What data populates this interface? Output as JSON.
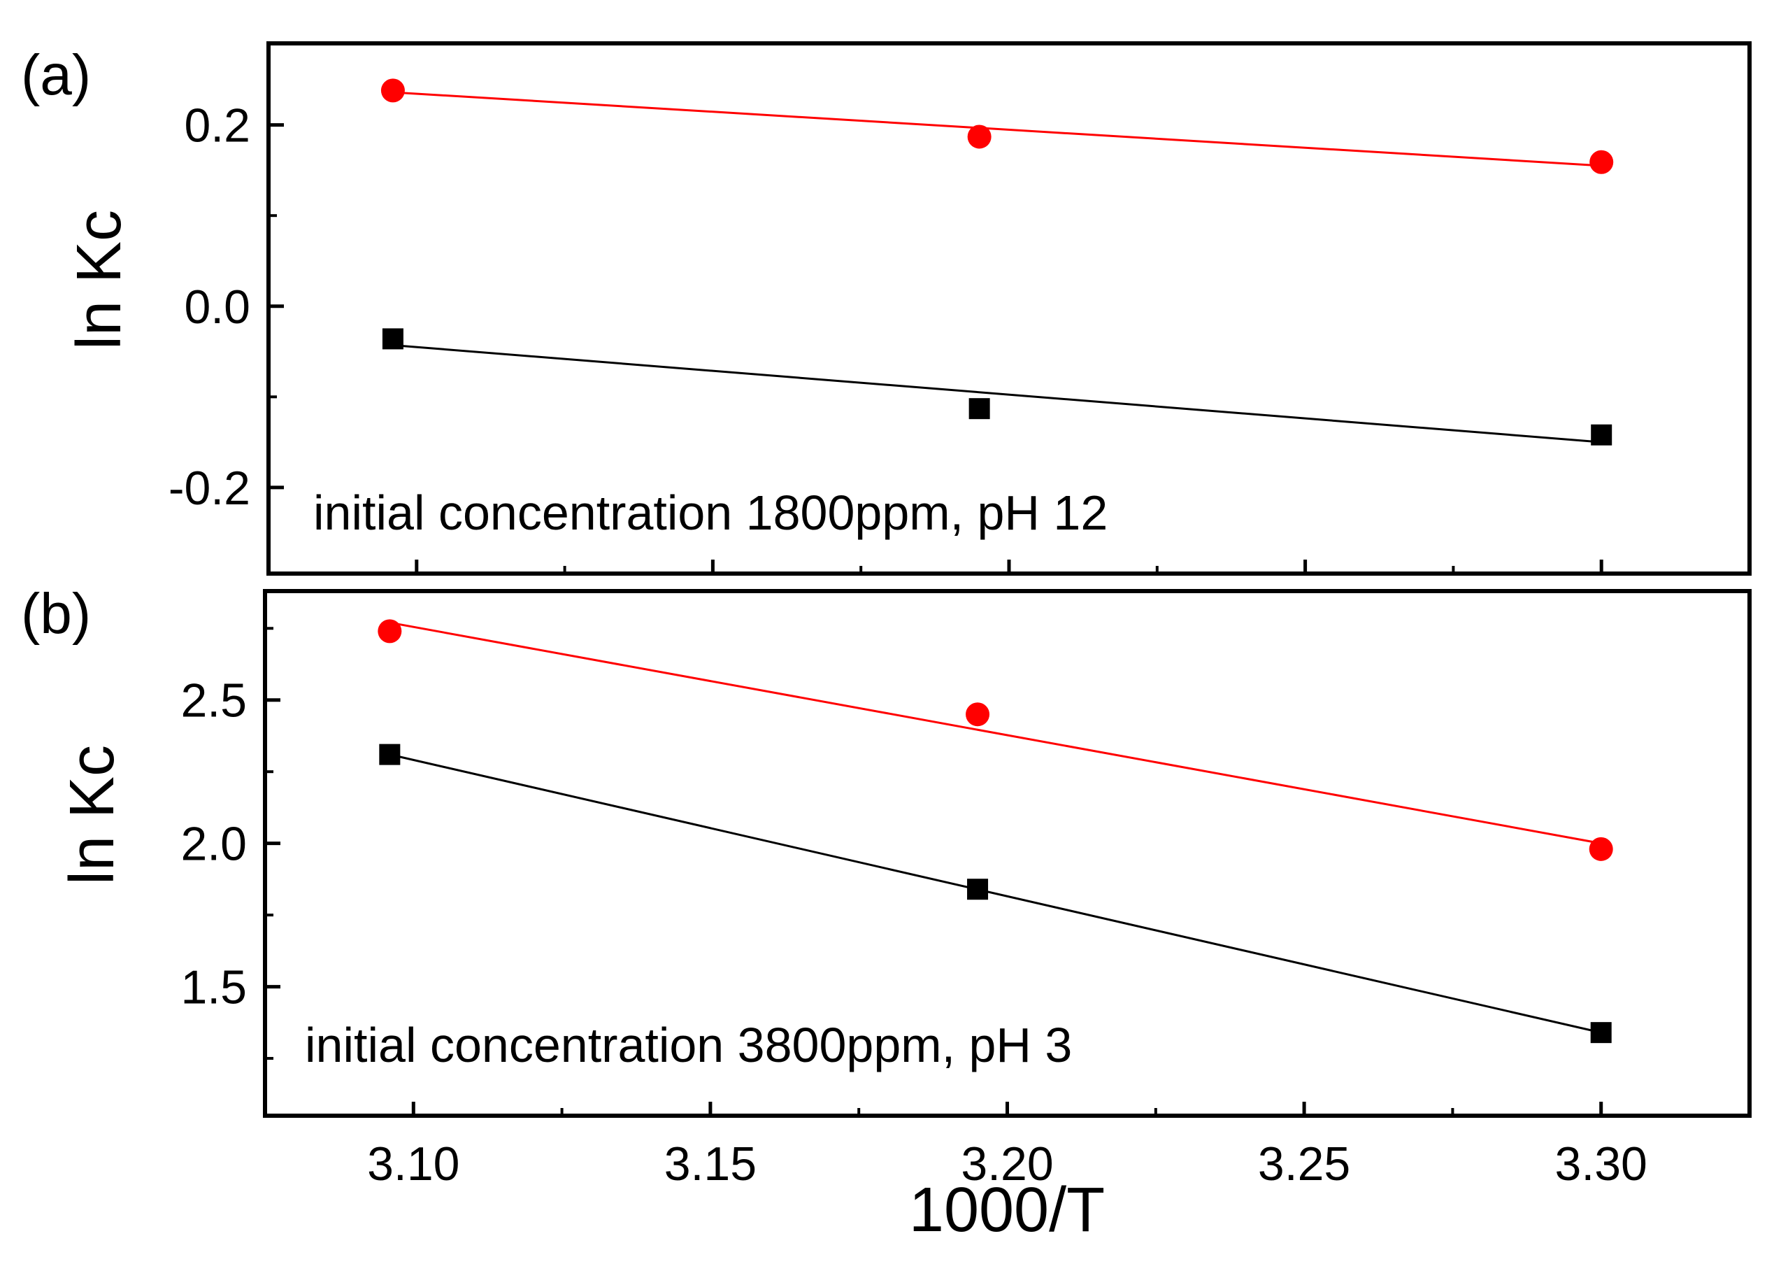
{
  "chart_data": [
    {
      "type": "scatter",
      "panel_label": "(a)",
      "annotation": "initial concentration 1800ppm, pH 12",
      "xlabel": "1000/T",
      "ylabel": "ln Kc",
      "xlim": [
        3.075,
        3.325
      ],
      "ylim": [
        -0.295,
        0.29
      ],
      "x_ticks": [
        3.1,
        3.15,
        3.2,
        3.25,
        3.3
      ],
      "y_ticks": [
        -0.2,
        0.0,
        0.2
      ],
      "y_tick_labels": [
        "-0.2",
        "0.0",
        "0.2"
      ],
      "x_minor_ticks": [
        3.125,
        3.175,
        3.225,
        3.275
      ],
      "y_minor_ticks": [
        -0.1,
        0.1
      ],
      "series": [
        {
          "name": "red",
          "color": "#ff0000",
          "marker": "circle",
          "x": [
            3.096,
            3.195,
            3.3
          ],
          "y": [
            0.238,
            0.187,
            0.159
          ],
          "fit": {
            "x": [
              3.096,
              3.3
            ],
            "y": [
              0.236,
              0.155
            ]
          }
        },
        {
          "name": "black",
          "color": "#000000",
          "marker": "square",
          "x": [
            3.096,
            3.195,
            3.3
          ],
          "y": [
            -0.036,
            -0.113,
            -0.142
          ],
          "fit": {
            "x": [
              3.096,
              3.3
            ],
            "y": [
              -0.043,
              -0.15
            ]
          }
        }
      ]
    },
    {
      "type": "scatter",
      "panel_label": "(b)",
      "annotation": "initial concentration 3800ppm, pH 3",
      "xlabel": "1000/T",
      "ylabel": "ln Kc",
      "xlim": [
        3.075,
        3.325
      ],
      "ylim": [
        1.05,
        2.88
      ],
      "x_ticks": [
        3.1,
        3.15,
        3.2,
        3.25,
        3.3
      ],
      "x_tick_labels": [
        "3.10",
        "3.15",
        "3.20",
        "3.25",
        "3.30"
      ],
      "y_ticks": [
        1.5,
        2.0,
        2.5
      ],
      "y_tick_labels": [
        "1.5",
        "2.0",
        "2.5"
      ],
      "x_minor_ticks": [
        3.125,
        3.175,
        3.225,
        3.275
      ],
      "y_minor_ticks": [
        1.25,
        1.75,
        2.25,
        2.75
      ],
      "series": [
        {
          "name": "red",
          "color": "#ff0000",
          "marker": "circle",
          "x": [
            3.096,
            3.195,
            3.3
          ],
          "y": [
            2.74,
            2.45,
            1.98
          ],
          "fit": {
            "x": [
              3.096,
              3.3
            ],
            "y": [
              2.77,
              2.0
            ]
          }
        },
        {
          "name": "black",
          "color": "#000000",
          "marker": "square",
          "x": [
            3.096,
            3.195,
            3.3
          ],
          "y": [
            2.31,
            1.84,
            1.34
          ],
          "fit": {
            "x": [
              3.096,
              3.3
            ],
            "y": [
              2.31,
              1.34
            ]
          }
        }
      ]
    }
  ]
}
